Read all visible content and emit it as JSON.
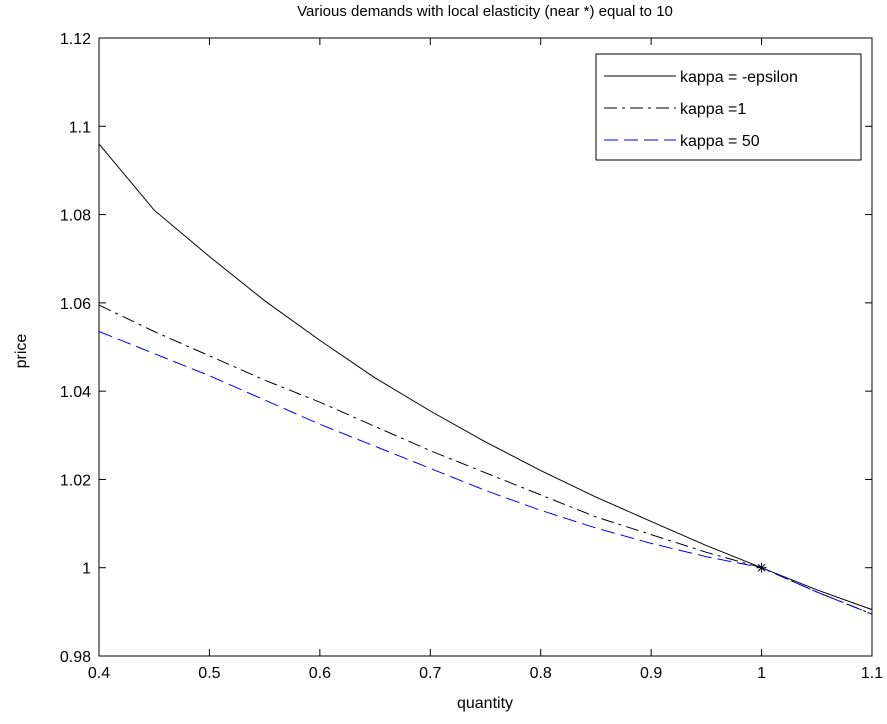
{
  "chart_data": {
    "type": "line",
    "title": "Various demands with local elasticity (near *) equal to 10",
    "xlabel": "quantity",
    "ylabel": "price",
    "xlim": [
      0.4,
      1.1
    ],
    "ylim": [
      0.98,
      1.12
    ],
    "xticks": [
      0.4,
      0.5,
      0.6,
      0.7,
      0.8,
      0.9,
      1,
      1.1
    ],
    "yticks": [
      0.98,
      1,
      1.02,
      1.04,
      1.06,
      1.08,
      1.1,
      1.12
    ],
    "grid": false,
    "legend_position": "top-right",
    "marker": {
      "x": 1,
      "y": 1,
      "symbol": "*"
    },
    "series": [
      {
        "name": "kappa = -epsilon",
        "color": "#000000",
        "style": "solid",
        "x": [
          0.4,
          0.45,
          0.5,
          0.55,
          0.6,
          0.65,
          0.7,
          0.75,
          0.8,
          0.85,
          0.9,
          0.95,
          1.0,
          1.05,
          1.1
        ],
        "y": [
          1.096,
          1.081,
          1.0705,
          1.0605,
          1.0515,
          1.043,
          1.0355,
          1.0285,
          1.022,
          1.016,
          1.0105,
          1.005,
          1.0,
          0.995,
          0.9905
        ]
      },
      {
        "name": "kappa =1",
        "color": "#000000",
        "style": "dashdot",
        "x": [
          0.4,
          0.45,
          0.5,
          0.55,
          0.6,
          0.65,
          0.7,
          0.75,
          0.8,
          0.85,
          0.9,
          0.95,
          1.0,
          1.05,
          1.1
        ],
        "y": [
          1.0595,
          1.0535,
          1.048,
          1.0425,
          1.0375,
          1.032,
          1.0265,
          1.0215,
          1.0165,
          1.0115,
          1.0075,
          1.0035,
          1.0,
          0.9945,
          0.9895
        ]
      },
      {
        "name": "kappa = 50",
        "color": "#0000ff",
        "style": "dashed",
        "x": [
          0.4,
          0.45,
          0.5,
          0.55,
          0.6,
          0.65,
          0.7,
          0.75,
          0.8,
          0.85,
          0.9,
          0.95,
          1.0,
          1.05,
          1.1
        ],
        "y": [
          1.0535,
          1.0485,
          1.0435,
          1.038,
          1.0325,
          1.0275,
          1.0225,
          1.0175,
          1.013,
          1.009,
          1.0055,
          1.0025,
          1.0,
          0.9945,
          0.9895
        ]
      }
    ]
  }
}
